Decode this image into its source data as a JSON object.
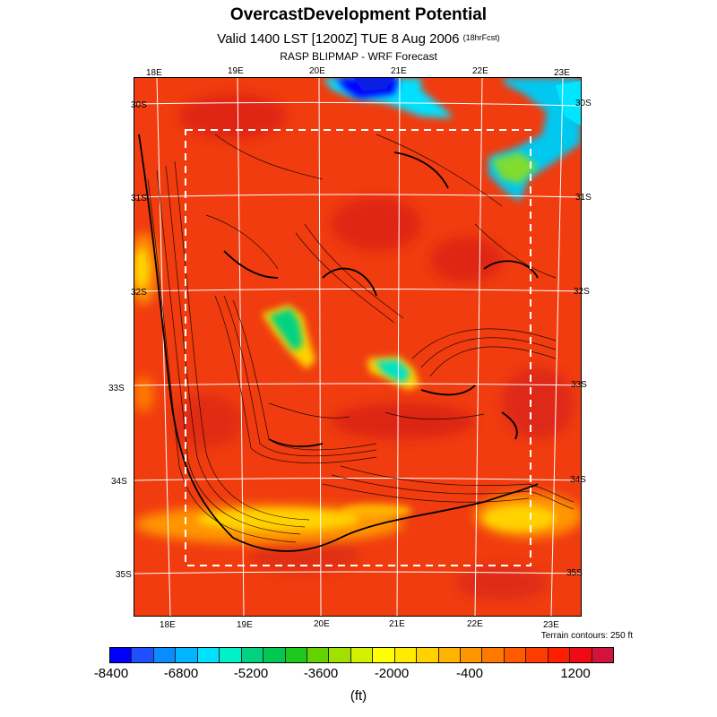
{
  "header": {
    "title": "OvercastDevelopment Potential",
    "subtitle_main": "Valid 1400 LST [1200Z] TUE 8 Aug 2006",
    "subtitle_small": "(18hrFcst)",
    "model": "RASP BLIPMAP - WRF Forecast"
  },
  "map": {
    "top_lon_labels": [
      "18E",
      "19E",
      "20E",
      "21E",
      "22E",
      "23E"
    ],
    "bottom_lon_labels": [
      "18E",
      "19E",
      "20E",
      "21E",
      "22E",
      "23E"
    ],
    "left_lat_labels": [
      "30S",
      "31S",
      "32S",
      "33S",
      "34S",
      "35S"
    ],
    "right_lat_labels": [
      "30S",
      "31S",
      "32S",
      "33S",
      "34S",
      "35S"
    ],
    "terrain_note": "Terrain contours: 250 ft",
    "background_color": "#f03c0f"
  },
  "colorbar": {
    "colors": [
      "#0000ff",
      "#1e50ff",
      "#0a8cff",
      "#00b4ff",
      "#00e1ff",
      "#00f0c8",
      "#00d282",
      "#00c850",
      "#1ec81e",
      "#64d200",
      "#a0e100",
      "#d2f000",
      "#ffff00",
      "#ffeb00",
      "#ffd200",
      "#ffb400",
      "#ff9600",
      "#ff7800",
      "#ff5a00",
      "#ff3c00",
      "#ff1e00",
      "#f00a14",
      "#d2143c"
    ],
    "labels": [
      "-8400",
      "-6800",
      "-5200",
      "-3600",
      "-2000",
      "-400",
      "1200"
    ],
    "unit": "(ft)"
  }
}
